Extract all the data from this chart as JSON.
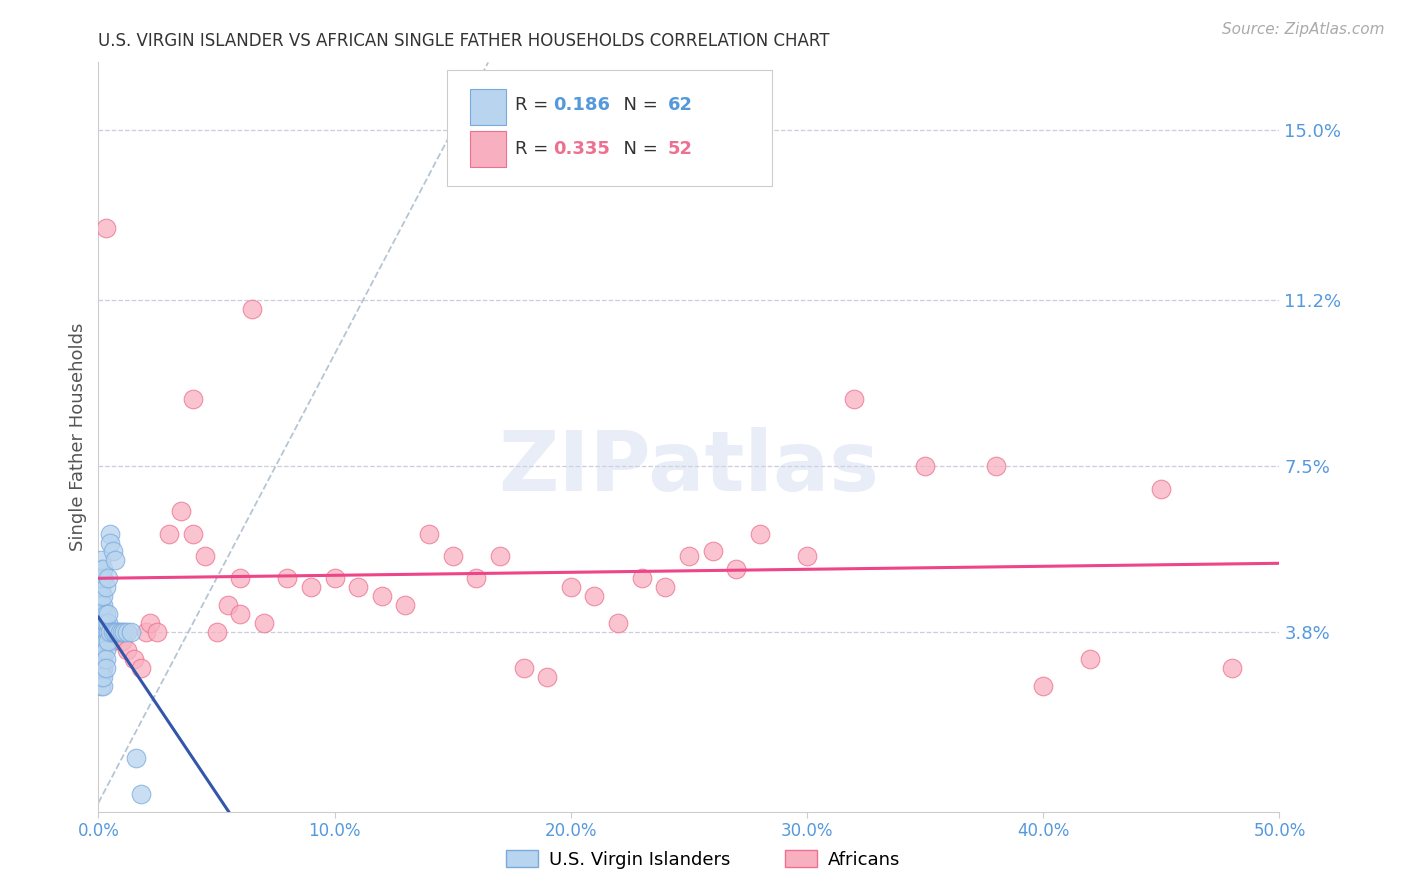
{
  "title": "U.S. VIRGIN ISLANDER VS AFRICAN SINGLE FATHER HOUSEHOLDS CORRELATION CHART",
  "source": "Source: ZipAtlas.com",
  "ylabel": "Single Father Households",
  "xlim": [
    0.0,
    0.5
  ],
  "ylim": [
    -0.002,
    0.165
  ],
  "xticks": [
    0.0,
    0.1,
    0.2,
    0.3,
    0.4,
    0.5
  ],
  "xtick_labels": [
    "0.0%",
    "10.0%",
    "20.0%",
    "30.0%",
    "40.0%",
    "50.0%"
  ],
  "yticks": [
    0.038,
    0.075,
    0.112,
    0.15
  ],
  "ytick_labels": [
    "3.8%",
    "7.5%",
    "11.2%",
    "15.0%"
  ],
  "legend_label1": "U.S. Virgin Islanders",
  "legend_label2": "Africans",
  "R1": "0.186",
  "N1": "62",
  "R2": "0.335",
  "N2": "52",
  "blue_fill": "#b8d4ee",
  "blue_edge": "#7aaadd",
  "pink_fill": "#f8b0c0",
  "pink_edge": "#ee7090",
  "blue_line": "#3355aa",
  "pink_line": "#ee4488",
  "diag_color": "#aabbcc",
  "grid_color": "#ccccdd",
  "axis_label_color": "#5599dd",
  "title_color": "#333333",
  "source_color": "#aaaaaa",
  "blue_x": [
    0.001,
    0.001,
    0.001,
    0.001,
    0.001,
    0.001,
    0.001,
    0.001,
    0.001,
    0.001,
    0.001,
    0.001,
    0.001,
    0.001,
    0.001,
    0.001,
    0.001,
    0.001,
    0.001,
    0.001,
    0.001,
    0.002,
    0.002,
    0.002,
    0.002,
    0.002,
    0.002,
    0.002,
    0.002,
    0.002,
    0.002,
    0.002,
    0.002,
    0.002,
    0.003,
    0.003,
    0.003,
    0.003,
    0.003,
    0.003,
    0.003,
    0.003,
    0.004,
    0.004,
    0.004,
    0.004,
    0.004,
    0.005,
    0.005,
    0.005,
    0.006,
    0.006,
    0.007,
    0.007,
    0.008,
    0.009,
    0.01,
    0.011,
    0.012,
    0.014,
    0.016,
    0.018
  ],
  "blue_y": [
    0.038,
    0.04,
    0.042,
    0.036,
    0.034,
    0.032,
    0.03,
    0.044,
    0.046,
    0.028,
    0.026,
    0.048,
    0.05,
    0.052,
    0.054,
    0.038,
    0.036,
    0.034,
    0.032,
    0.03,
    0.028,
    0.038,
    0.04,
    0.042,
    0.036,
    0.034,
    0.032,
    0.03,
    0.044,
    0.046,
    0.026,
    0.028,
    0.05,
    0.052,
    0.038,
    0.04,
    0.042,
    0.036,
    0.034,
    0.032,
    0.03,
    0.048,
    0.038,
    0.04,
    0.042,
    0.036,
    0.05,
    0.06,
    0.058,
    0.038,
    0.056,
    0.038,
    0.054,
    0.038,
    0.038,
    0.038,
    0.038,
    0.038,
    0.038,
    0.038,
    0.01,
    0.002
  ],
  "pink_x": [
    0.001,
    0.003,
    0.004,
    0.006,
    0.008,
    0.01,
    0.012,
    0.015,
    0.018,
    0.02,
    0.022,
    0.025,
    0.03,
    0.035,
    0.04,
    0.045,
    0.05,
    0.055,
    0.06,
    0.065,
    0.07,
    0.08,
    0.09,
    0.1,
    0.11,
    0.12,
    0.13,
    0.14,
    0.15,
    0.16,
    0.17,
    0.18,
    0.19,
    0.2,
    0.21,
    0.22,
    0.23,
    0.24,
    0.25,
    0.26,
    0.27,
    0.28,
    0.3,
    0.32,
    0.35,
    0.38,
    0.4,
    0.42,
    0.45,
    0.48,
    0.04,
    0.06
  ],
  "pink_y": [
    0.038,
    0.128,
    0.038,
    0.036,
    0.038,
    0.036,
    0.034,
    0.032,
    0.03,
    0.038,
    0.04,
    0.038,
    0.06,
    0.065,
    0.06,
    0.055,
    0.038,
    0.044,
    0.042,
    0.11,
    0.04,
    0.05,
    0.048,
    0.05,
    0.048,
    0.046,
    0.044,
    0.06,
    0.055,
    0.05,
    0.055,
    0.03,
    0.028,
    0.048,
    0.046,
    0.04,
    0.05,
    0.048,
    0.055,
    0.056,
    0.052,
    0.06,
    0.055,
    0.09,
    0.075,
    0.075,
    0.026,
    0.032,
    0.07,
    0.03,
    0.09,
    0.05
  ]
}
